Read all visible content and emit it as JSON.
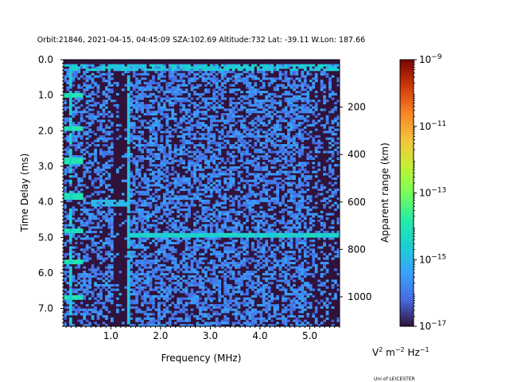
{
  "chart_data": {
    "type": "heatmap",
    "title": "Orbit:21846, 2021-04-15, 04:45:09 SZA:102.69 Altitude:732 Lat: -39.11 W.Lon: 187.66",
    "xlabel": "Frequency (MHz)",
    "ylabel": "Time Delay (ms)",
    "y2label": "Apparent range (km)",
    "xlim": [
      0.05,
      5.6
    ],
    "ylim": [
      7.5,
      0.0
    ],
    "x_ticks": [
      1.0,
      2.0,
      3.0,
      4.0,
      5.0
    ],
    "x_tick_labels": [
      "1.0",
      "2.0",
      "3.0",
      "4.0",
      "5.0"
    ],
    "y_ticks": [
      0.0,
      1.0,
      2.0,
      3.0,
      4.0,
      5.0,
      6.0,
      7.0
    ],
    "y_tick_labels": [
      "0.0",
      "1.0",
      "2.0",
      "3.0",
      "4.0",
      "5.0",
      "6.0",
      "7.0"
    ],
    "y2_ticks": [
      200,
      400,
      600,
      800,
      1000
    ],
    "y2_tick_labels": [
      "200",
      "400",
      "600",
      "800",
      "1000"
    ],
    "y2_scale_km_per_ms": 149.9,
    "colorbar": {
      "scale": "log",
      "range": [
        1e-17,
        1e-09
      ],
      "tick_exponents": [
        -17,
        -15,
        -13,
        -11,
        -9
      ],
      "tick_labels": [
        "10",
        "10",
        "10",
        "10",
        "10"
      ],
      "tick_sup": [
        "−17",
        "−15",
        "−13",
        "−11",
        "−9"
      ],
      "label_parts": [
        "V",
        "2",
        " m",
        "−2",
        " Hz",
        "−1"
      ],
      "colormap": "turbo"
    },
    "features": {
      "time_gap_ms": [
        0.0,
        0.15
      ],
      "ground_echo_ms": 4.95,
      "ground_echo_log_level": -14.5,
      "background_log_level": -17,
      "noise_log_level": -15.8,
      "bright_freq_lines_mhz": [
        0.18,
        1.35
      ],
      "plasma_line_delays_ms": [
        1.0,
        1.95,
        2.85,
        3.85,
        4.8,
        5.7,
        6.7
      ],
      "upper_echo_ms": [
        4.0,
        4.1
      ]
    }
  },
  "footer": {
    "credit": "Uni of LEICESTER"
  },
  "colors": {
    "background_cell": "#30123b",
    "axis": "#000000"
  }
}
